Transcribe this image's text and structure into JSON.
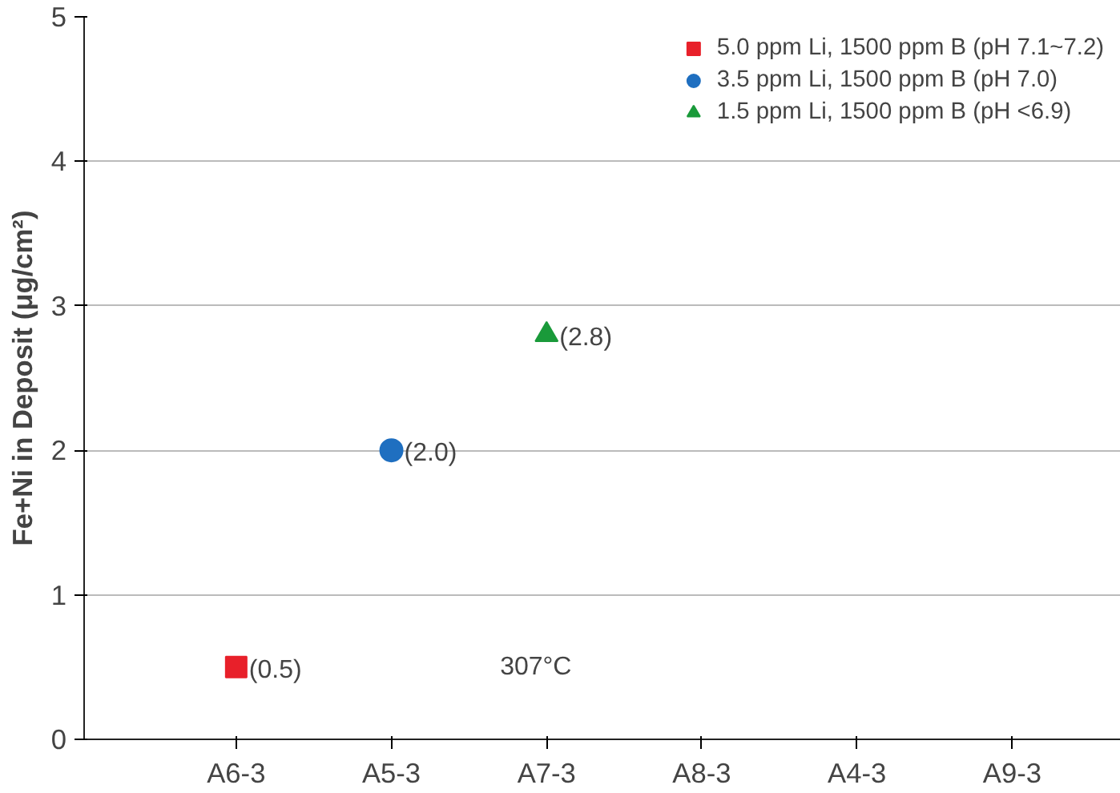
{
  "chart_data": {
    "type": "scatter",
    "ylabel": "Fe+Ni in Deposit (μg/cm²)",
    "categories": [
      "A6-3",
      "A5-3",
      "A7-3",
      "A8-3",
      "A4-3",
      "A9-3"
    ],
    "series": [
      {
        "name": "5.0 ppm Li, 1500 ppm B (pH 7.1~7.2)",
        "color": "#e8202a",
        "marker": "square",
        "values": [
          0.5,
          null,
          null,
          null,
          null,
          null
        ],
        "value_labels": [
          "(0.5)",
          null,
          null,
          null,
          null,
          null
        ]
      },
      {
        "name": "3.5 ppm Li, 1500 ppm B (pH 7.0)",
        "color": "#1f6fc0",
        "marker": "circle",
        "values": [
          null,
          2.0,
          null,
          null,
          null,
          null
        ],
        "value_labels": [
          null,
          "(2.0)",
          null,
          null,
          null,
          null
        ]
      },
      {
        "name": "1.5 ppm Li, 1500 ppm B (pH <6.9)",
        "color": "#1a9a3a",
        "marker": "triangle",
        "values": [
          null,
          null,
          2.8,
          null,
          null,
          null
        ],
        "value_labels": [
          null,
          null,
          "(2.8)",
          null,
          null,
          null
        ]
      }
    ],
    "ylim": [
      0,
      5
    ],
    "yticks": [
      0,
      1,
      2,
      3,
      4,
      5
    ],
    "grid": "y",
    "legend": "top right",
    "annotations": [
      "307°C"
    ]
  }
}
